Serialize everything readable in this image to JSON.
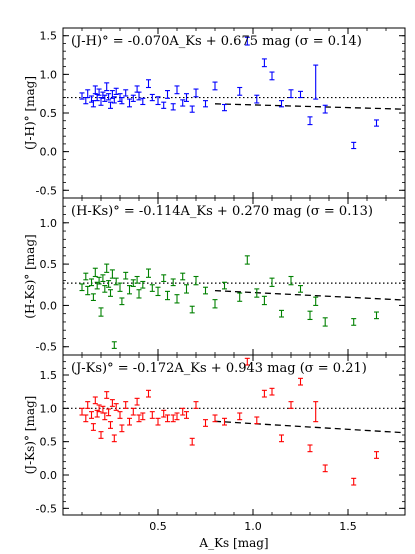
{
  "chart_data": [
    {
      "type": "scatter",
      "title": "(J-H)° = -0.070A_Ks + 0.675 mag (σ = 0.14)",
      "ylabel": "(J-H)° [mag]",
      "xlabel": "",
      "color": "#0000ff",
      "xlim": [
        0.0,
        1.8
      ],
      "ylim": [
        -0.6,
        1.6
      ],
      "yticks": [
        "-0.5",
        "0.0",
        "0.5",
        "1.0",
        "1.5"
      ],
      "fit": {
        "slope": -0.07,
        "intercept": 0.675,
        "xrange": [
          0.8,
          1.8
        ]
      },
      "reference": 0.7,
      "x": [
        0.1,
        0.12,
        0.13,
        0.15,
        0.16,
        0.17,
        0.18,
        0.19,
        0.2,
        0.21,
        0.22,
        0.23,
        0.24,
        0.25,
        0.26,
        0.27,
        0.28,
        0.3,
        0.31,
        0.33,
        0.35,
        0.37,
        0.39,
        0.4,
        0.42,
        0.45,
        0.47,
        0.5,
        0.53,
        0.55,
        0.58,
        0.6,
        0.63,
        0.65,
        0.68,
        0.7,
        0.75,
        0.8,
        0.85,
        0.93,
        0.97,
        1.02,
        1.06,
        1.1,
        1.15,
        1.2,
        1.25,
        1.3,
        1.33,
        1.38,
        1.53,
        1.65
      ],
      "y": [
        0.72,
        0.66,
        0.75,
        0.68,
        0.62,
        0.8,
        0.7,
        0.77,
        0.65,
        0.73,
        0.69,
        0.84,
        0.71,
        0.6,
        0.74,
        0.67,
        0.78,
        0.7,
        0.66,
        0.76,
        0.63,
        0.69,
        0.81,
        0.72,
        0.65,
        0.88,
        0.7,
        0.66,
        0.6,
        0.74,
        0.58,
        0.8,
        0.63,
        0.7,
        0.55,
        0.76,
        0.62,
        0.85,
        0.57,
        0.78,
        1.43,
        0.68,
        1.15,
        0.98,
        0.62,
        0.75,
        0.74,
        0.4,
        0.9,
        0.55,
        0.08,
        0.37
      ],
      "yerr": [
        0.04,
        0.04,
        0.05,
        0.04,
        0.04,
        0.05,
        0.04,
        0.04,
        0.05,
        0.04,
        0.04,
        0.05,
        0.04,
        0.04,
        0.05,
        0.04,
        0.04,
        0.05,
        0.04,
        0.04,
        0.05,
        0.04,
        0.04,
        0.05,
        0.04,
        0.05,
        0.04,
        0.05,
        0.04,
        0.05,
        0.04,
        0.05,
        0.04,
        0.05,
        0.04,
        0.05,
        0.04,
        0.05,
        0.04,
        0.05,
        0.05,
        0.05,
        0.05,
        0.05,
        0.04,
        0.05,
        0.04,
        0.05,
        0.22,
        0.05,
        0.04,
        0.04
      ]
    },
    {
      "type": "scatter",
      "title": "(H-Ks)° = -0.114A_Ks + 0.270 mag (σ = 0.13)",
      "ylabel": "(H-Ks)° [mag]",
      "xlabel": "",
      "color": "#008000",
      "xlim": [
        0.0,
        1.8
      ],
      "ylim": [
        -0.6,
        1.3
      ],
      "yticks": [
        "-0.5",
        "0.0",
        "0.5",
        "1.0"
      ],
      "fit": {
        "slope": -0.114,
        "intercept": 0.27,
        "xrange": [
          0.8,
          1.8
        ]
      },
      "reference": 0.27,
      "x": [
        0.1,
        0.12,
        0.13,
        0.15,
        0.16,
        0.17,
        0.18,
        0.19,
        0.2,
        0.21,
        0.22,
        0.23,
        0.24,
        0.25,
        0.26,
        0.27,
        0.28,
        0.3,
        0.31,
        0.33,
        0.35,
        0.37,
        0.39,
        0.4,
        0.42,
        0.45,
        0.47,
        0.5,
        0.53,
        0.55,
        0.58,
        0.6,
        0.63,
        0.65,
        0.68,
        0.7,
        0.75,
        0.8,
        0.85,
        0.93,
        0.97,
        1.02,
        1.06,
        1.1,
        1.15,
        1.2,
        1.25,
        1.3,
        1.33,
        1.38,
        1.53,
        1.65
      ],
      "y": [
        0.22,
        0.35,
        0.18,
        0.28,
        0.1,
        0.4,
        0.24,
        0.3,
        -0.08,
        0.33,
        0.2,
        0.45,
        0.26,
        0.15,
        0.38,
        -0.48,
        0.29,
        0.22,
        0.05,
        0.36,
        0.19,
        0.27,
        0.31,
        0.14,
        0.25,
        0.39,
        0.21,
        0.17,
        0.33,
        0.12,
        0.28,
        0.08,
        0.35,
        0.2,
        -0.05,
        0.3,
        0.18,
        0.02,
        0.24,
        0.1,
        0.55,
        0.15,
        0.06,
        0.28,
        -0.1,
        0.3,
        0.2,
        -0.12,
        0.05,
        -0.2,
        -0.2,
        -0.12
      ],
      "yerr": [
        0.04,
        0.04,
        0.05,
        0.04,
        0.04,
        0.05,
        0.04,
        0.04,
        0.05,
        0.04,
        0.04,
        0.05,
        0.04,
        0.04,
        0.05,
        0.04,
        0.04,
        0.05,
        0.04,
        0.04,
        0.05,
        0.04,
        0.04,
        0.05,
        0.04,
        0.05,
        0.04,
        0.05,
        0.04,
        0.05,
        0.04,
        0.05,
        0.04,
        0.05,
        0.04,
        0.05,
        0.04,
        0.05,
        0.04,
        0.05,
        0.05,
        0.05,
        0.05,
        0.05,
        0.04,
        0.05,
        0.04,
        0.05,
        0.05,
        0.05,
        0.04,
        0.04
      ]
    },
    {
      "type": "scatter",
      "title": "(J-Ks)° = -0.172A_Ks + 0.943 mag (σ = 0.21)",
      "ylabel": "(J-Ks)° [mag]",
      "xlabel": "A_Ks [mag]",
      "color": "#ff0000",
      "xlim": [
        0.0,
        1.8
      ],
      "ylim": [
        -0.6,
        1.8
      ],
      "yticks": [
        "-0.5",
        "0.0",
        "0.5",
        "1.0",
        "1.5"
      ],
      "xticks": [
        "0.5",
        "1.0",
        "1.5"
      ],
      "fit": {
        "slope": -0.172,
        "intercept": 0.943,
        "xrange": [
          0.8,
          1.8
        ]
      },
      "reference": 1.0,
      "x": [
        0.1,
        0.12,
        0.13,
        0.15,
        0.16,
        0.17,
        0.18,
        0.19,
        0.2,
        0.21,
        0.22,
        0.23,
        0.24,
        0.25,
        0.26,
        0.27,
        0.28,
        0.3,
        0.31,
        0.33,
        0.35,
        0.37,
        0.39,
        0.4,
        0.42,
        0.45,
        0.47,
        0.5,
        0.53,
        0.55,
        0.58,
        0.6,
        0.63,
        0.65,
        0.68,
        0.7,
        0.75,
        0.8,
        0.85,
        0.93,
        0.97,
        1.02,
        1.06,
        1.1,
        1.15,
        1.2,
        1.25,
        1.3,
        1.33,
        1.38,
        1.53,
        1.65
      ],
      "y": [
        0.95,
        0.85,
        1.05,
        0.9,
        0.72,
        1.12,
        0.92,
        1.0,
        0.6,
        0.98,
        0.88,
        1.2,
        0.94,
        0.75,
        1.08,
        0.55,
        1.02,
        0.9,
        0.7,
        1.05,
        0.8,
        0.95,
        1.1,
        0.85,
        0.88,
        1.22,
        0.9,
        0.8,
        0.92,
        0.85,
        0.85,
        0.88,
        0.95,
        0.9,
        0.5,
        1.05,
        0.78,
        0.85,
        0.8,
        0.88,
        1.7,
        0.82,
        1.22,
        1.25,
        0.55,
        1.05,
        1.4,
        0.4,
        0.95,
        0.1,
        -0.1,
        0.3
      ],
      "yerr": [
        0.05,
        0.05,
        0.05,
        0.05,
        0.05,
        0.05,
        0.05,
        0.05,
        0.05,
        0.05,
        0.05,
        0.05,
        0.05,
        0.05,
        0.05,
        0.05,
        0.05,
        0.05,
        0.05,
        0.05,
        0.05,
        0.05,
        0.05,
        0.05,
        0.05,
        0.05,
        0.05,
        0.05,
        0.05,
        0.05,
        0.05,
        0.05,
        0.05,
        0.05,
        0.05,
        0.05,
        0.05,
        0.05,
        0.05,
        0.05,
        0.05,
        0.05,
        0.05,
        0.05,
        0.05,
        0.05,
        0.05,
        0.05,
        0.15,
        0.05,
        0.05,
        0.05
      ]
    }
  ]
}
